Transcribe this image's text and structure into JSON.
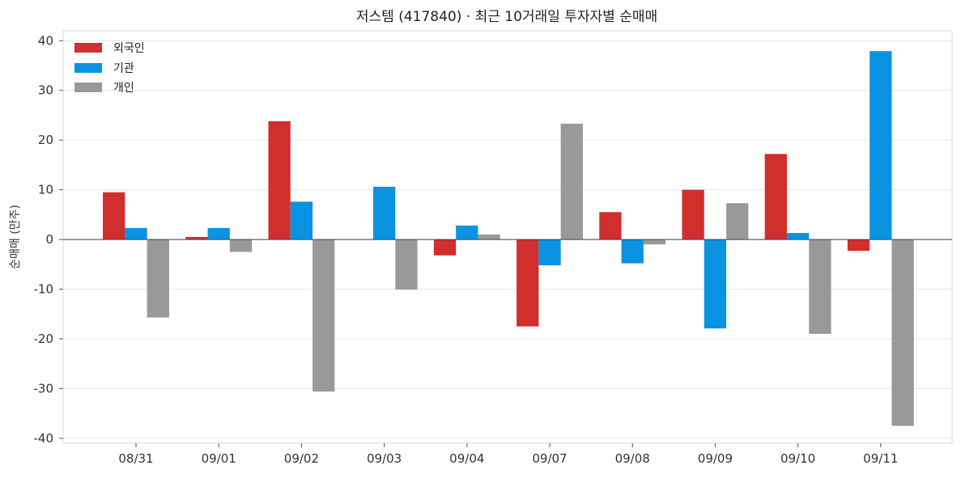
{
  "chart_data": {
    "type": "bar",
    "title": "저스템 (417840) · 최근 10거래일 투자자별 순매매",
    "xlabel": "",
    "ylabel": "순매매 (만주)",
    "categories": [
      "08/31",
      "09/01",
      "09/02",
      "09/03",
      "09/04",
      "09/07",
      "09/08",
      "09/09",
      "09/10",
      "09/11"
    ],
    "series": [
      {
        "name": "외국인",
        "color": "#d12e2e",
        "values": [
          9.5,
          0.5,
          23.8,
          0.0,
          -3.2,
          -17.5,
          5.5,
          10.0,
          17.2,
          -2.3
        ]
      },
      {
        "name": "기관",
        "color": "#0a93e3",
        "values": [
          2.3,
          2.3,
          7.6,
          10.6,
          2.8,
          -5.2,
          -4.8,
          -17.9,
          1.3,
          37.9
        ]
      },
      {
        "name": "개인",
        "color": "#999999",
        "values": [
          -15.7,
          -2.5,
          -30.6,
          -10.1,
          1.0,
          23.3,
          -1.0,
          7.3,
          -19.0,
          -37.5
        ]
      }
    ],
    "ylim": [
      -41,
      42
    ],
    "yticks": [
      40,
      30,
      20,
      10,
      0,
      -10,
      -20,
      -30,
      -40
    ],
    "ytick_labels": [
      "40",
      "30",
      "20",
      "10",
      "0",
      "-10",
      "-20",
      "-30",
      "-40"
    ],
    "grid": true,
    "legend_position": "top-left"
  }
}
